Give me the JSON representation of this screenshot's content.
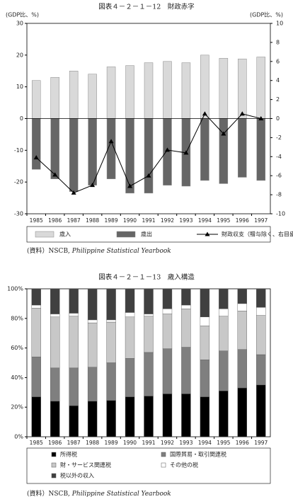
{
  "chart_data": [
    {
      "type": "bar",
      "title": "図表４－２－１－12　財政赤字",
      "ylabel": "(GDP比、%)",
      "y2label": "(GDP比、%)",
      "source": "(資料）NSCB, ",
      "source_italic": "Philippine Statistical Yearbook",
      "categories": [
        "1985",
        "1986",
        "1987",
        "1988",
        "1989",
        "1990",
        "1991",
        "1992",
        "1993",
        "1994",
        "1995",
        "1996",
        "1997"
      ],
      "series": [
        {
          "name": "歳入",
          "color": "#d9d9d9",
          "values": [
            12,
            13,
            15,
            14,
            16.3,
            16.7,
            17.6,
            18,
            17.6,
            20,
            19,
            18.8,
            19.4
          ]
        },
        {
          "name": "歳出",
          "color": "#666666",
          "values": [
            -16,
            -19,
            -23,
            -21,
            -19,
            -23.5,
            -23.5,
            -21,
            -21.3,
            -19.5,
            -20.5,
            -18.5,
            -19.5
          ]
        },
        {
          "name": "財政収支（贈与除く、右目盛）",
          "color": "#000000",
          "type": "line",
          "axis": "y2",
          "values": [
            -4.1,
            -5.9,
            -7.8,
            -7.0,
            -2.4,
            -7.1,
            -6.0,
            -3.3,
            -3.6,
            0.5,
            -1.6,
            0.5,
            0
          ]
        }
      ],
      "ylim": [
        -30,
        30
      ],
      "yticks": [
        -30,
        -20,
        -10,
        0,
        10,
        20,
        30
      ],
      "y2lim": [
        -10,
        10
      ],
      "y2ticks": [
        -10,
        -8,
        -6,
        -4,
        -2,
        0,
        2,
        4,
        6,
        8,
        10
      ]
    },
    {
      "type": "stacked_bar",
      "title": "図表４－２－１－13　歳入構造",
      "source": "(資料）NSCB, ",
      "source_italic": "Philippine Statistical Yearbook",
      "categories": [
        "1985",
        "1986",
        "1987",
        "1988",
        "1989",
        "1990",
        "1991",
        "1992",
        "1993",
        "1994",
        "1995",
        "1996",
        "1997"
      ],
      "series": [
        {
          "name": "所得税",
          "color": "#000000",
          "values": [
            27,
            24,
            21,
            24,
            24.5,
            27,
            27.5,
            29,
            29,
            27,
            31,
            33,
            35
          ]
        },
        {
          "name": "国際貿易・取引関連税",
          "color": "#7f7f7f",
          "values": [
            27,
            22.5,
            25.5,
            23,
            25.5,
            26,
            29.5,
            30.5,
            31.5,
            25,
            27,
            26,
            20.5
          ]
        },
        {
          "name": "財・サービス関連税",
          "color": "#c8c8c8",
          "values": [
            33,
            34.5,
            35,
            30,
            27.5,
            28,
            24.5,
            23.5,
            26,
            23,
            23.5,
            26,
            26.5
          ]
        },
        {
          "name": "その他の税",
          "color": "#ffffff",
          "values": [
            2,
            2,
            2,
            2,
            1.5,
            3,
            1.5,
            3.5,
            2.5,
            6,
            5,
            5,
            5.5
          ]
        },
        {
          "name": "税以外の収入",
          "color": "#404040",
          "values": [
            11,
            17,
            16.5,
            21,
            21,
            16,
            17,
            13.5,
            11,
            19,
            13.5,
            10,
            12.5
          ]
        }
      ],
      "ylim": [
        0,
        100
      ],
      "yticks": [
        {
          "value": 0,
          "label": "0%"
        },
        {
          "value": 20,
          "label": "20%"
        },
        {
          "value": 40,
          "label": "40%"
        },
        {
          "value": 60,
          "label": "60%"
        },
        {
          "value": 80,
          "label": "80%"
        },
        {
          "value": 100,
          "label": "100%"
        }
      ]
    }
  ]
}
